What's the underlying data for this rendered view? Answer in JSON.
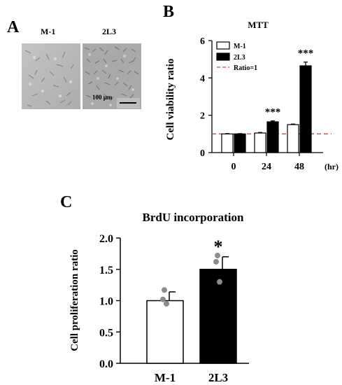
{
  "panel_a": {
    "letter": "A",
    "left_label": "M-1",
    "right_label": "2L3",
    "scale_bar": "100 µm"
  },
  "panel_b": {
    "letter": "B",
    "title": "MTT",
    "ylabel": "Cell viability ratio",
    "x_unit": "(hr)",
    "legend": [
      "M-1",
      "2L3",
      "Ratio=1"
    ]
  },
  "panel_c": {
    "letter": "C",
    "title": "BrdU incorporation",
    "ylabel": "Cell proliferation ratio",
    "significance": "*"
  },
  "colors": {
    "bar_m1": "#ffffff",
    "bar_2l3": "#000000",
    "ratio_line": "#c0504d",
    "point": "#8c8c8c"
  },
  "chart_data": [
    {
      "type": "bar",
      "title": "MTT",
      "xlabel": "(hr)",
      "ylabel": "Cell viability ratio",
      "categories": [
        "0",
        "24",
        "48"
      ],
      "series": [
        {
          "name": "M-1",
          "values": [
            1.0,
            1.05,
            1.5
          ],
          "errors": [
            0.02,
            0.03,
            0.03
          ]
        },
        {
          "name": "2L3",
          "values": [
            1.0,
            1.65,
            4.65
          ],
          "errors": [
            0.02,
            0.05,
            0.2
          ]
        }
      ],
      "reference_line": {
        "name": "Ratio=1",
        "value": 1
      },
      "annotations": [
        "",
        "***",
        "***"
      ],
      "ylim": [
        0,
        6
      ],
      "yticks": [
        0,
        2,
        4,
        6
      ],
      "legend": "top-left",
      "grid": false
    },
    {
      "type": "bar",
      "title": "BrdU incorporation",
      "xlabel": "",
      "ylabel": "Cell proliferation ratio",
      "categories": [
        "M-1",
        "2L3"
      ],
      "values": [
        1.0,
        1.5
      ],
      "errors": [
        0.14,
        0.2
      ],
      "points": [
        [
          1.17,
          1.02,
          0.95
        ],
        [
          1.72,
          1.62,
          1.3
        ]
      ],
      "annotations": [
        "",
        "*"
      ],
      "ylim": [
        0,
        2.0
      ],
      "yticks": [
        "0.0",
        "0.5",
        "1.0",
        "1.5",
        "2.0"
      ],
      "grid": false
    }
  ]
}
